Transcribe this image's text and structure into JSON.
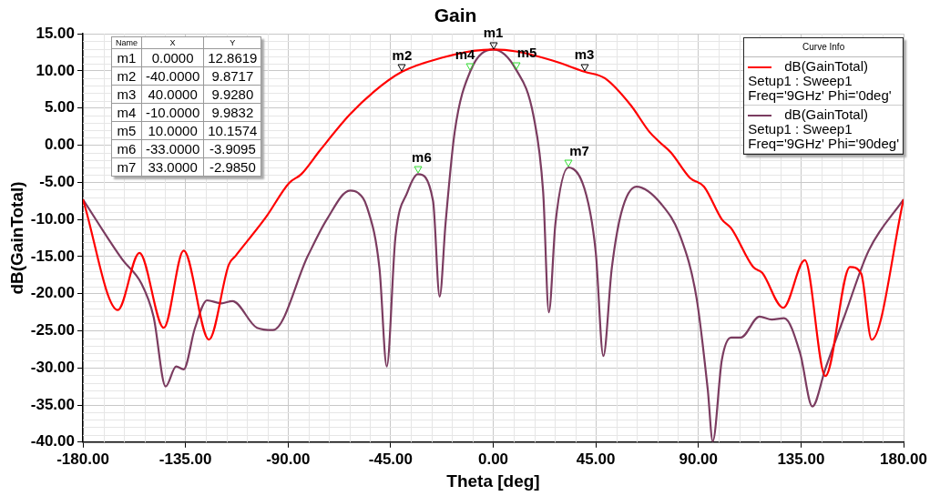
{
  "chart_data": {
    "type": "line",
    "title": "Gain",
    "xlabel": "Theta [deg]",
    "ylabel": "dB(GainTotal)",
    "legend_title": "Curve Info",
    "legend": "top right",
    "grid": true,
    "line_style": "solid",
    "marker": "none",
    "xlim": [
      -180,
      180
    ],
    "xticks": [
      {
        "value": -180,
        "label": "-180.00"
      },
      {
        "value": -135,
        "label": "-135.00"
      },
      {
        "value": -90,
        "label": "-90.00"
      },
      {
        "value": -45,
        "label": "-45.00"
      },
      {
        "value": 0,
        "label": "0.00"
      },
      {
        "value": 45,
        "label": "45.00"
      },
      {
        "value": 90,
        "label": "90.00"
      },
      {
        "value": 135,
        "label": "135.00"
      },
      {
        "value": 180,
        "label": "180.00"
      }
    ],
    "ylim": [
      -40,
      15
    ],
    "yticks": [
      {
        "value": -40,
        "label": "-40.00"
      },
      {
        "value": -35,
        "label": "-35.00"
      },
      {
        "value": -30,
        "label": "-30.00"
      },
      {
        "value": -25,
        "label": "-25.00"
      },
      {
        "value": -20,
        "label": "-20.00"
      },
      {
        "value": -15,
        "label": "-15.00"
      },
      {
        "value": -10,
        "label": "-10.00"
      },
      {
        "value": -5,
        "label": "-5.00"
      },
      {
        "value": 0,
        "label": "0.00"
      },
      {
        "value": 5,
        "label": "5.00"
      },
      {
        "value": 10,
        "label": "10.00"
      },
      {
        "value": 15,
        "label": "15.00"
      }
    ],
    "series": [
      {
        "name": "dB(GainTotal)\nSetup1 : Sweep1\nFreq='9GHz' Phi='0deg'",
        "color": "#ff0000",
        "x": [
          -180,
          -164.7,
          -155.2,
          -144.5,
          -135.8,
          -124.7,
          -116,
          -113,
          -99.5,
          -89.6,
          -84.2,
          -76,
          -63,
          -52.4,
          -40,
          -22.3,
          -8.7,
          0,
          10.7,
          26,
          40,
          49.1,
          60.3,
          68.5,
          72.7,
          78,
          86.3,
          92.5,
          100.3,
          104.4,
          114,
          118,
          127.2,
          136.7,
          145.7,
          156.5,
          161.4,
          166,
          180
        ],
        "values": [
          -7.3,
          -22.2,
          -14.5,
          -24.6,
          -14.2,
          -26.2,
          -16.1,
          -14.9,
          -9.6,
          -5.1,
          -3.9,
          -0.7,
          4.1,
          7.2,
          9.9,
          11.8,
          12.7,
          12.9,
          12.6,
          11.4,
          9.9,
          9.0,
          5.4,
          1.8,
          0.5,
          -1.0,
          -4.4,
          -5.6,
          -10,
          -11.2,
          -16.4,
          -17.2,
          -21.9,
          -15.5,
          -31.1,
          -16.4,
          -17.3,
          -26.2,
          -7.3
        ]
      },
      {
        "name": "dB(GainTotal)\nSetup1 : Sweep1\nFreq='9GHz' Phi='90deg'",
        "color": "#7b3c60",
        "x": [
          -180,
          -162.7,
          -154.4,
          -149,
          -143.7,
          -139.1,
          -135.8,
          -130.9,
          -125.5,
          -119.3,
          -114.4,
          -103.6,
          -96.6,
          -81.3,
          -73,
          -62.8,
          -59.4,
          -55.3,
          -49.9,
          -46.7,
          -42.9,
          -37.6,
          -33,
          -26.4,
          -23.5,
          -20.9,
          -16.9,
          -10,
          0,
          10,
          17.7,
          21.9,
          24.4,
          27.3,
          33,
          40.9,
          45,
          48.3,
          52,
          56.1,
          62.8,
          73.9,
          82.2,
          89.2,
          94.1,
          96.3,
          100.3,
          104.4,
          108.6,
          116.8,
          122.2,
          127.6,
          134.6,
          140,
          145.7,
          154,
          164.7,
          180
        ],
        "values": [
          -7.3,
          -15.4,
          -18.6,
          -23.1,
          -32.5,
          -29.8,
          -30.2,
          -24.7,
          -20.9,
          -21.3,
          -21,
          -24.6,
          -24.9,
          -14.9,
          -10,
          -6.1,
          -6.4,
          -8.4,
          -16.6,
          -29.8,
          -12.4,
          -6.3,
          -3.9,
          -7.5,
          -20.4,
          -10.5,
          1.8,
          10.0,
          12.9,
          10.2,
          3.9,
          -6.3,
          -22.5,
          -10.5,
          -3.0,
          -6.8,
          -14.5,
          -28.4,
          -16.6,
          -9.2,
          -5.6,
          -8,
          -12.4,
          -20.6,
          -32.9,
          -39.9,
          -28.9,
          -25.9,
          -25.9,
          -23.1,
          -23.5,
          -23.3,
          -28,
          -35.2,
          -30.1,
          -23.1,
          -14.2,
          -7.3
        ]
      }
    ],
    "annotations": [
      "Name",
      "X",
      "Y",
      "m1",
      "0.0000",
      "12.8619",
      "m2",
      "-40.0000",
      "9.8717",
      "m3",
      "40.0000",
      "9.9280",
      "m4",
      "-10.0000",
      "9.9832",
      "m5",
      "10.0000",
      "10.1574",
      "m6",
      "-33.0000",
      "-3.9095",
      "m7",
      "33.0000",
      "-2.9850",
      {
        "text": "m1",
        "x": 0,
        "y": 12.8619
      },
      {
        "text": "m2",
        "x": -40,
        "y": 9.8717
      },
      {
        "text": "m3",
        "x": 40,
        "y": 9.928
      },
      {
        "text": "m4",
        "x": -10,
        "y": 9.9832
      },
      {
        "text": "m5",
        "x": 10,
        "y": 10.1574
      },
      {
        "text": "m6",
        "x": -33,
        "y": -3.9095
      },
      {
        "text": "m7",
        "x": 33,
        "y": -2.985
      }
    ]
  }
}
